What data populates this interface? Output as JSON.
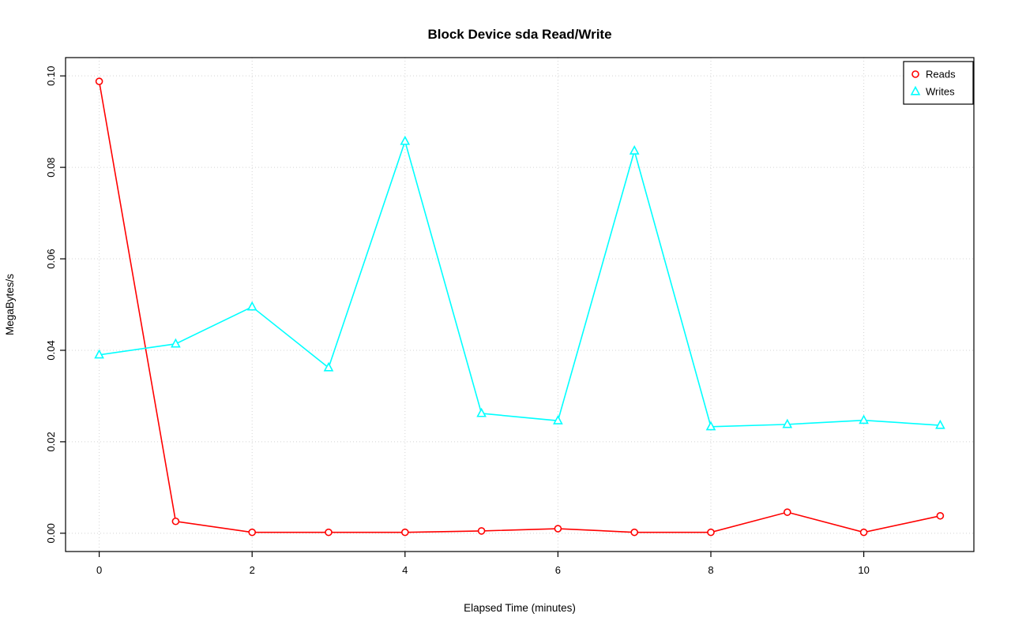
{
  "page": {
    "background": "#FFFFFF"
  },
  "chart_data": {
    "type": "line",
    "title": "Block Device sda Read/Write",
    "xlabel": "Elapsed Time (minutes)",
    "ylabel": "MegaBytes/s",
    "x": [
      0,
      1,
      2,
      3,
      4,
      5,
      6,
      7,
      8,
      9,
      10,
      11
    ],
    "series": [
      {
        "name": "Reads",
        "color": "#FF0000",
        "marker": "circle",
        "values": [
          0.0988,
          0.0026,
          0.0002,
          0.0002,
          0.0002,
          0.0005,
          0.001,
          0.0002,
          0.0002,
          0.0046,
          0.0002,
          0.0038
        ]
      },
      {
        "name": "Writes",
        "color": "#00FFFF",
        "marker": "triangle",
        "values": [
          0.039,
          0.0414,
          0.0495,
          0.0362,
          0.0857,
          0.0262,
          0.0246,
          0.0836,
          0.0233,
          0.0238,
          0.0247,
          0.0236
        ]
      }
    ],
    "xlim": [
      0,
      11
    ],
    "ylim": [
      0,
      0.1
    ],
    "x_ticks": [
      0,
      2,
      4,
      6,
      8,
      10
    ],
    "x_tick_labels": [
      "0",
      "2",
      "4",
      "6",
      "8",
      "10"
    ],
    "y_ticks": [
      0,
      0.02,
      0.04,
      0.06,
      0.08,
      0.1
    ],
    "y_tick_labels": [
      "0.00",
      "0.02",
      "0.04",
      "0.06",
      "0.08",
      "0.10"
    ],
    "grid": true,
    "grid_style": "dotted",
    "grid_color": "#D3D3D3",
    "axis_color": "#000000",
    "legend_position": "top-right",
    "legend_entries": [
      "Reads",
      "Writes"
    ]
  }
}
